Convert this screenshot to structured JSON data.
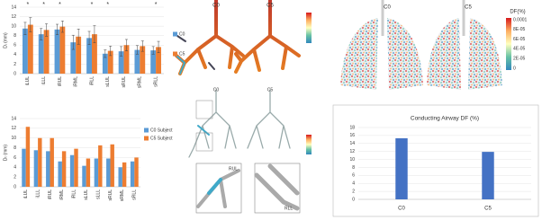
{
  "chart_data": [
    {
      "type": "bar",
      "y_label": "Dᵢ (mm)",
      "categories": [
        "iLUL",
        "iLLL",
        "iRUL",
        "iRML",
        "iRLL",
        "sLUL",
        "sRUL",
        "sRML",
        "sRLL"
      ],
      "series": [
        {
          "name": "C0",
          "color": "#5b9bd5",
          "values": [
            9.5,
            8.3,
            9.3,
            6.6,
            7.5,
            4.2,
            4.7,
            5.0,
            4.9
          ],
          "errors": [
            1.3,
            1.2,
            1.1,
            1.5,
            1.4,
            0.8,
            1.0,
            0.9,
            0.8
          ]
        },
        {
          "name": "C5",
          "color": "#ed7d31",
          "values": [
            10.3,
            9.2,
            9.9,
            7.8,
            8.3,
            4.8,
            6.0,
            5.8,
            5.6
          ],
          "errors": [
            1.5,
            1.3,
            1.2,
            1.6,
            1.8,
            1.0,
            1.2,
            1.1,
            1.2
          ]
        }
      ],
      "markers": [
        "*",
        "*",
        "*",
        null,
        "*",
        "*",
        null,
        null,
        "*"
      ],
      "ylim": [
        0,
        14
      ],
      "yticks": [
        0,
        2,
        4,
        6,
        8,
        10,
        12,
        14
      ],
      "grid": true,
      "legend": "right"
    },
    {
      "type": "bar",
      "y_label": "Dₜ (mm)",
      "categories": [
        "iLUL",
        "iLLL",
        "iRUL",
        "iRML",
        "iRLL",
        "sLUL",
        "sLLL",
        "sRUL",
        "sRML",
        "sRLL"
      ],
      "series": [
        {
          "name": "C0 Subject",
          "color": "#5b9bd5",
          "values": [
            7.8,
            7.5,
            7.3,
            5.2,
            6.5,
            4.3,
            5.8,
            5.8,
            4.0,
            5.2
          ]
        },
        {
          "name": "C5 Subject",
          "color": "#ed7d31",
          "values": [
            12.3,
            10.0,
            10.0,
            7.3,
            7.8,
            5.8,
            8.5,
            8.7,
            5.0,
            6.0
          ]
        }
      ],
      "ylim": [
        0,
        14
      ],
      "yticks": [
        0,
        2,
        4,
        6,
        8,
        10,
        12,
        14
      ],
      "grid": true,
      "legend": "right"
    },
    {
      "type": "bar",
      "title": "Conducting Airway DF (%)",
      "categories": [
        "C0",
        "C5"
      ],
      "values": [
        15.3,
        11.9
      ],
      "color": "#4472c4",
      "ylim": [
        0,
        18
      ],
      "yticks": [
        0,
        2,
        4,
        6,
        8,
        10,
        12,
        14,
        16,
        18
      ],
      "grid": true
    }
  ],
  "images": {
    "airway_top": [
      "C0",
      "C5"
    ],
    "airway_mid": [
      "C0",
      "C5"
    ],
    "zoom_labels": [
      "RUL",
      "RLL"
    ],
    "lungs": [
      "C0",
      "C5"
    ],
    "colorbar": {
      "title": "DF(%)",
      "ticks": [
        "0.0001",
        "8E-05",
        "6E-05",
        "4E-05",
        "2E-05",
        "0"
      ]
    }
  }
}
